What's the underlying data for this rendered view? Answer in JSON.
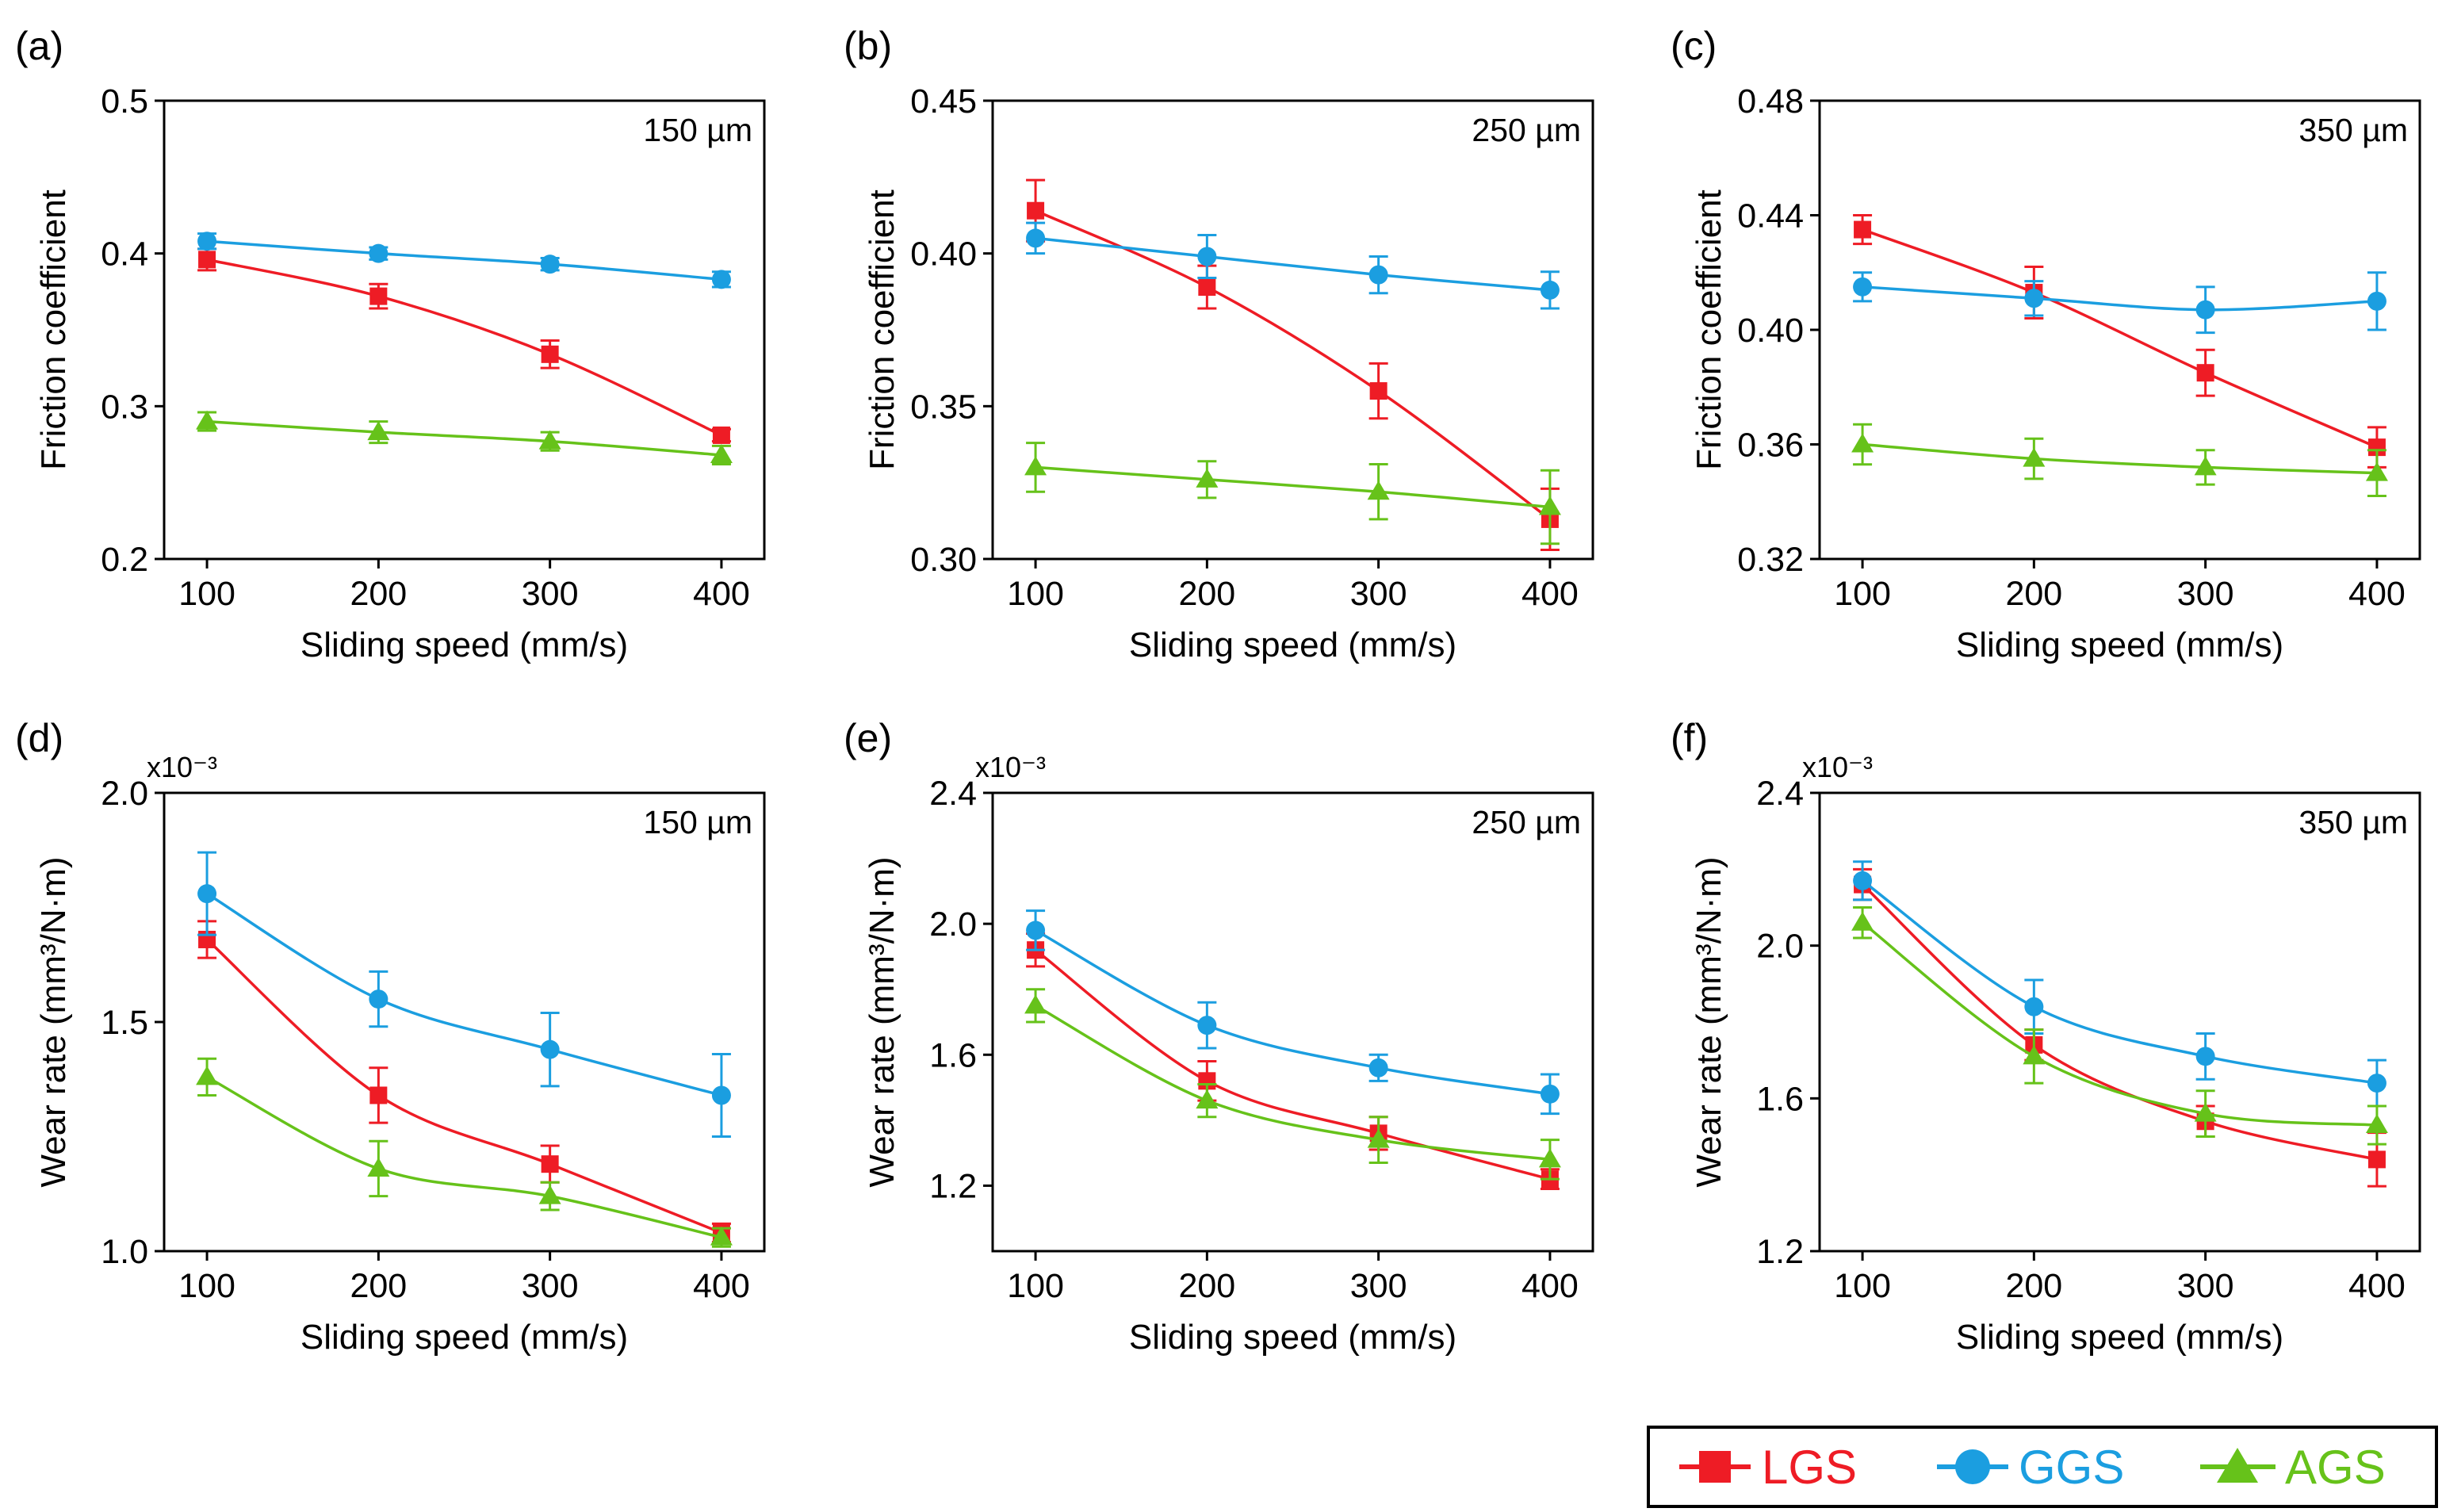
{
  "legend": [
    {
      "name": "LGS",
      "color": "#ee1c25",
      "marker": "square"
    },
    {
      "name": "GGS",
      "color": "#1b9ee0",
      "marker": "circle"
    },
    {
      "name": "AGS",
      "color": "#66c21a",
      "marker": "triangle"
    }
  ],
  "chart_data": [
    {
      "type": "line",
      "panel": "(a)",
      "size": "150 µm",
      "xlabel": "Sliding speed (mm/s)",
      "ylabel": "Friction coefficient",
      "x": [
        100,
        200,
        300,
        400
      ],
      "xlim": [
        75,
        425
      ],
      "ylim": [
        0.2,
        0.5
      ],
      "yticks": [
        0.2,
        0.3,
        0.4,
        0.5
      ],
      "ytick_labels": [
        "0.2",
        "0.3",
        "0.4",
        "0.5"
      ],
      "xtick_labels": [
        "100",
        "200",
        "300",
        "400"
      ],
      "multiplier": "",
      "series": [
        {
          "name": "LGS",
          "values": [
            0.396,
            0.372,
            0.334,
            0.281
          ],
          "errors": [
            0.007,
            0.008,
            0.009,
            0.004
          ]
        },
        {
          "name": "GGS",
          "values": [
            0.408,
            0.4,
            0.393,
            0.383
          ],
          "errors": [
            0.005,
            0.004,
            0.004,
            0.005
          ]
        },
        {
          "name": "AGS",
          "values": [
            0.29,
            0.283,
            0.277,
            0.268
          ],
          "errors": [
            0.006,
            0.007,
            0.006,
            0.006
          ]
        }
      ]
    },
    {
      "type": "line",
      "panel": "(b)",
      "size": "250 µm",
      "xlabel": "Sliding speed (mm/s)",
      "ylabel": "Friction coefficient",
      "x": [
        100,
        200,
        300,
        400
      ],
      "xlim": [
        75,
        425
      ],
      "ylim": [
        0.3,
        0.45
      ],
      "yticks": [
        0.3,
        0.35,
        0.4,
        0.45
      ],
      "ytick_labels": [
        "0.30",
        "0.35",
        "0.40",
        "0.45"
      ],
      "xtick_labels": [
        "100",
        "200",
        "300",
        "400"
      ],
      "multiplier": "",
      "series": [
        {
          "name": "LGS",
          "values": [
            0.414,
            0.389,
            0.355,
            0.313
          ],
          "errors": [
            0.01,
            0.007,
            0.009,
            0.01
          ]
        },
        {
          "name": "GGS",
          "values": [
            0.405,
            0.399,
            0.393,
            0.388
          ],
          "errors": [
            0.005,
            0.007,
            0.006,
            0.006
          ]
        },
        {
          "name": "AGS",
          "values": [
            0.33,
            0.326,
            0.322,
            0.317
          ],
          "errors": [
            0.008,
            0.006,
            0.009,
            0.012
          ]
        }
      ]
    },
    {
      "type": "line",
      "panel": "(c)",
      "size": "350 µm",
      "xlabel": "Sliding speed (mm/s)",
      "ylabel": "Friction coefficient",
      "x": [
        100,
        200,
        300,
        400
      ],
      "xlim": [
        75,
        425
      ],
      "ylim": [
        0.32,
        0.48
      ],
      "yticks": [
        0.32,
        0.36,
        0.4,
        0.44,
        0.48
      ],
      "ytick_labels": [
        "0.32",
        "0.36",
        "0.40",
        "0.44",
        "0.48"
      ],
      "xtick_labels": [
        "100",
        "200",
        "300",
        "400"
      ],
      "multiplier": "",
      "series": [
        {
          "name": "LGS",
          "values": [
            0.435,
            0.413,
            0.385,
            0.359
          ],
          "errors": [
            0.005,
            0.009,
            0.008,
            0.007
          ]
        },
        {
          "name": "GGS",
          "values": [
            0.415,
            0.411,
            0.407,
            0.41
          ],
          "errors": [
            0.005,
            0.006,
            0.008,
            0.01
          ]
        },
        {
          "name": "AGS",
          "values": [
            0.36,
            0.355,
            0.352,
            0.35
          ],
          "errors": [
            0.007,
            0.007,
            0.006,
            0.008
          ]
        }
      ]
    },
    {
      "type": "line",
      "panel": "(d)",
      "size": "150 µm",
      "xlabel": "Sliding speed (mm/s)",
      "ylabel": "Wear rate (mm³/N·m)",
      "x": [
        100,
        200,
        300,
        400
      ],
      "xlim": [
        75,
        425
      ],
      "ylim": [
        1.0,
        2.0
      ],
      "yticks": [
        1.0,
        1.5,
        2.0
      ],
      "ytick_labels": [
        "1.0",
        "1.5",
        "2.0"
      ],
      "xtick_labels": [
        "100",
        "200",
        "300",
        "400"
      ],
      "multiplier": "x10⁻³",
      "series": [
        {
          "name": "LGS",
          "values": [
            1.68,
            1.34,
            1.19,
            1.04
          ],
          "errors": [
            0.04,
            0.06,
            0.04,
            0.02
          ]
        },
        {
          "name": "GGS",
          "values": [
            1.78,
            1.55,
            1.44,
            1.34
          ],
          "errors": [
            0.09,
            0.06,
            0.08,
            0.09
          ]
        },
        {
          "name": "AGS",
          "values": [
            1.38,
            1.18,
            1.12,
            1.03
          ],
          "errors": [
            0.04,
            0.06,
            0.03,
            0.02
          ]
        }
      ]
    },
    {
      "type": "line",
      "panel": "(e)",
      "size": "250 µm",
      "xlabel": "Sliding speed (mm/s)",
      "ylabel": "Wear rate (mm³/N·m)",
      "x": [
        100,
        200,
        300,
        400
      ],
      "xlim": [
        75,
        425
      ],
      "ylim": [
        1.0,
        2.4
      ],
      "yticks": [
        1.2,
        1.6,
        2.0,
        2.4
      ],
      "ytick_labels": [
        "1.2",
        "1.6",
        "2.0",
        "2.4"
      ],
      "xtick_labels": [
        "100",
        "200",
        "300",
        "400"
      ],
      "multiplier": "x10⁻³",
      "series": [
        {
          "name": "LGS",
          "values": [
            1.92,
            1.52,
            1.36,
            1.22
          ],
          "errors": [
            0.05,
            0.06,
            0.05,
            0.03
          ]
        },
        {
          "name": "GGS",
          "values": [
            1.98,
            1.69,
            1.56,
            1.48
          ],
          "errors": [
            0.06,
            0.07,
            0.04,
            0.06
          ]
        },
        {
          "name": "AGS",
          "values": [
            1.75,
            1.46,
            1.34,
            1.28
          ],
          "errors": [
            0.05,
            0.05,
            0.07,
            0.06
          ]
        }
      ]
    },
    {
      "type": "line",
      "panel": "(f)",
      "size": "350 µm",
      "xlabel": "Sliding speed (mm/s)",
      "ylabel": "Wear rate (mm³/N·m)",
      "x": [
        100,
        200,
        300,
        400
      ],
      "xlim": [
        75,
        425
      ],
      "ylim": [
        1.2,
        2.4
      ],
      "yticks": [
        1.2,
        1.6,
        2.0,
        2.4
      ],
      "ytick_labels": [
        "1.2",
        "1.6",
        "2.0",
        "2.4"
      ],
      "xtick_labels": [
        "100",
        "200",
        "300",
        "400"
      ],
      "multiplier": "x10⁻³",
      "series": [
        {
          "name": "LGS",
          "values": [
            2.16,
            1.74,
            1.54,
            1.44
          ],
          "errors": [
            0.04,
            0.04,
            0.04,
            0.07
          ]
        },
        {
          "name": "GGS",
          "values": [
            2.17,
            1.84,
            1.71,
            1.64
          ],
          "errors": [
            0.05,
            0.07,
            0.06,
            0.06
          ]
        },
        {
          "name": "AGS",
          "values": [
            2.06,
            1.71,
            1.56,
            1.53
          ],
          "errors": [
            0.04,
            0.07,
            0.06,
            0.05
          ]
        }
      ]
    }
  ]
}
